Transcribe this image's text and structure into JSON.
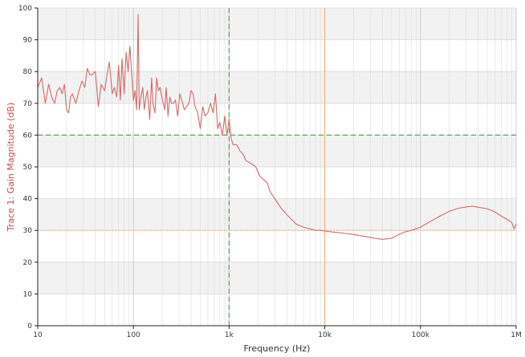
{
  "chart_data": {
    "type": "line",
    "x_scale": "log",
    "y_scale": "linear",
    "xlim": [
      10,
      1000000
    ],
    "ylim": [
      0,
      100
    ],
    "xlabel": "Frequency (Hz)",
    "ylabel": "Trace 1: Gain Magnitude (dB)",
    "grid": true,
    "legend": "none",
    "x_ticks": [
      {
        "value": 10,
        "label": "10"
      },
      {
        "value": 100,
        "label": "100"
      },
      {
        "value": 1000,
        "label": "1k"
      },
      {
        "value": 10000,
        "label": "10k"
      },
      {
        "value": 100000,
        "label": "100k"
      },
      {
        "value": 1000000,
        "label": "1M"
      }
    ],
    "y_ticks": [
      0,
      10,
      20,
      30,
      40,
      50,
      60,
      70,
      80,
      90,
      100
    ],
    "colors": {
      "trace": "#d46a6a",
      "ylabel": "#c44a4a",
      "band": "#f2f2f2",
      "grid": "#dcdcdc",
      "cursor_green": "#5aa05a",
      "cursor_orange": "#f0b47a"
    },
    "cursors": [
      {
        "name": "vertical",
        "orientation": "vertical",
        "x": 1000,
        "style": "dashed",
        "color": "#5aa05a"
      },
      {
        "name": "horizontal",
        "orientation": "horizontal",
        "y": 60,
        "style": "dashed",
        "color": "#5aa05a"
      },
      {
        "name": "vertical",
        "orientation": "vertical",
        "x": 10000,
        "style": "solid",
        "color": "#f0b47a"
      },
      {
        "name": "horizontal",
        "orientation": "horizontal",
        "y": 30,
        "style": "dotted",
        "color": "#f0b47a"
      }
    ],
    "series": [
      {
        "color": "#d46a6a",
        "x": [
          10,
          11,
          12,
          13,
          14,
          15,
          16,
          17,
          18,
          19,
          20,
          21,
          22,
          23,
          25,
          27,
          29,
          31,
          33,
          35,
          37,
          40,
          43,
          46,
          50,
          53,
          56,
          60,
          63,
          67,
          70,
          73,
          76,
          80,
          84,
          88,
          92,
          96,
          100,
          104,
          108,
          112,
          115,
          120,
          125,
          130,
          135,
          140,
          148,
          155,
          160,
          168,
          175,
          182,
          190,
          198,
          205,
          213,
          220,
          230,
          240,
          250,
          262,
          275,
          290,
          305,
          320,
          340,
          360,
          380,
          400,
          420,
          440,
          470,
          500,
          530,
          560,
          600,
          640,
          680,
          720,
          760,
          800,
          850,
          900,
          950,
          1000,
          1050,
          1100,
          1200,
          1300,
          1400,
          1500,
          1700,
          1900,
          2100,
          2300,
          2500,
          2700,
          3000,
          3500,
          4000,
          5000,
          6000,
          7000,
          8000,
          9000,
          10000,
          12000,
          15000,
          20000,
          25000,
          30000,
          35000,
          40000,
          50000,
          60000,
          70000,
          80000,
          100000,
          130000,
          160000,
          200000,
          250000,
          300000,
          350000,
          400000,
          500000,
          600000,
          700000,
          800000,
          900000,
          950000,
          1000000
        ],
        "y": [
          75,
          78,
          70,
          76,
          72,
          70,
          74,
          75,
          73,
          76,
          68,
          67,
          72,
          73,
          70,
          74,
          77,
          75,
          81,
          79,
          79,
          80,
          69,
          76,
          74,
          79,
          83,
          73,
          75,
          72,
          82,
          71,
          84,
          73,
          86,
          80,
          88,
          79,
          71,
          74,
          68,
          98,
          68,
          72,
          75,
          68,
          72,
          74,
          65,
          78,
          70,
          67,
          78,
          74,
          75,
          72,
          70,
          68,
          75,
          66,
          72,
          70,
          70,
          71,
          66,
          73,
          71,
          68,
          69,
          70,
          74,
          73,
          69,
          67,
          62,
          69,
          66,
          67,
          70,
          67,
          73,
          62,
          64,
          60,
          66,
          60,
          65,
          59,
          57,
          57,
          55,
          54,
          52,
          51,
          50,
          47,
          46,
          45,
          42,
          40,
          37,
          35,
          32,
          31,
          30.5,
          30,
          30,
          29.8,
          29.5,
          29.2,
          28.7,
          28.2,
          27.8,
          27.4,
          27.2,
          27.5,
          28.8,
          29.6,
          30,
          31,
          33,
          34.5,
          36,
          37,
          37.4,
          37.6,
          37.3,
          36.8,
          35.8,
          34.5,
          33.5,
          32.5,
          30.5,
          32
        ]
      }
    ]
  }
}
